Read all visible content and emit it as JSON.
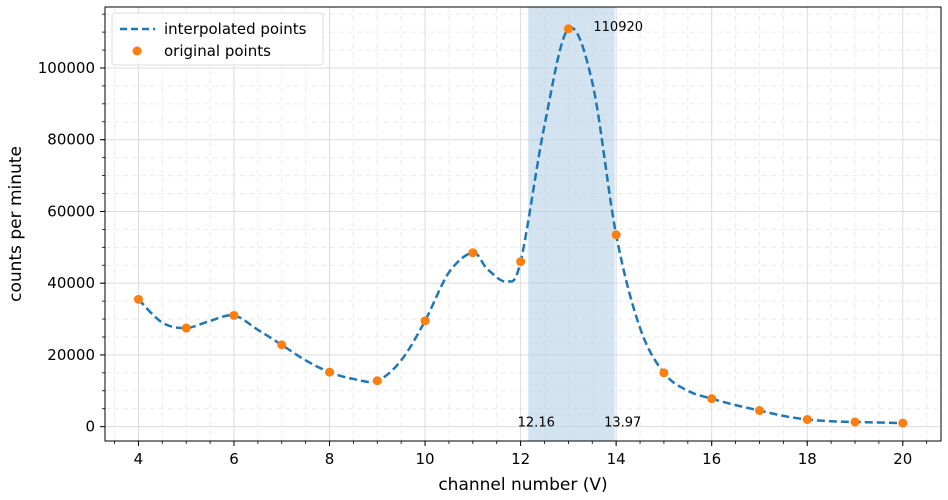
{
  "chart_data": {
    "type": "line",
    "xlabel": "channel number (V)",
    "ylabel": "counts per minute",
    "xlim": [
      3.3,
      20.8
    ],
    "ylim": [
      -4000,
      117000
    ],
    "x_ticks": [
      4,
      6,
      8,
      10,
      12,
      14,
      16,
      18,
      20
    ],
    "y_ticks": [
      0,
      20000,
      40000,
      60000,
      80000,
      100000
    ],
    "grid": true,
    "legend_placement": "top-left",
    "series": [
      {
        "name": "interpolated points",
        "style": "dashed-line",
        "color": "#1f77b4",
        "x": [
          4,
          4.5,
          5,
          5.5,
          6,
          6.5,
          7,
          7.5,
          8,
          8.5,
          9,
          9.5,
          10,
          10.5,
          11,
          11.3,
          11.7,
          12,
          12.5,
          13,
          13.5,
          14,
          14.5,
          15,
          15.5,
          16,
          16.5,
          17,
          17.5,
          18,
          18.5,
          19,
          20
        ],
        "y": [
          35500,
          29000,
          27500,
          29500,
          31000,
          27000,
          22800,
          18500,
          15200,
          13300,
          12800,
          18500,
          29500,
          43000,
          48500,
          44000,
          40500,
          46000,
          84000,
          110920,
          96000,
          53500,
          27500,
          15000,
          10000,
          7800,
          6000,
          4500,
          3000,
          2000,
          1500,
          1300,
          1000
        ]
      },
      {
        "name": "original points",
        "style": "markers",
        "color": "#ff7f0e",
        "x": [
          4,
          5,
          6,
          7,
          8,
          9,
          10,
          11,
          12,
          13,
          14,
          15,
          16,
          17,
          18,
          19,
          20
        ],
        "y": [
          35500,
          27500,
          31000,
          22800,
          15200,
          12800,
          29500,
          48500,
          46000,
          110920,
          53500,
          15000,
          7800,
          4500,
          2000,
          1300,
          1000
        ]
      }
    ],
    "shaded_region": {
      "x_start": 12.16,
      "x_end": 13.97,
      "color": "#aecde4"
    },
    "annotations": [
      {
        "text": "110920",
        "x": 13,
        "y": 110920
      },
      {
        "text": "12.16",
        "x": 12.16,
        "y": 0
      },
      {
        "text": "13.97",
        "x": 13.97,
        "y": 0
      }
    ]
  }
}
